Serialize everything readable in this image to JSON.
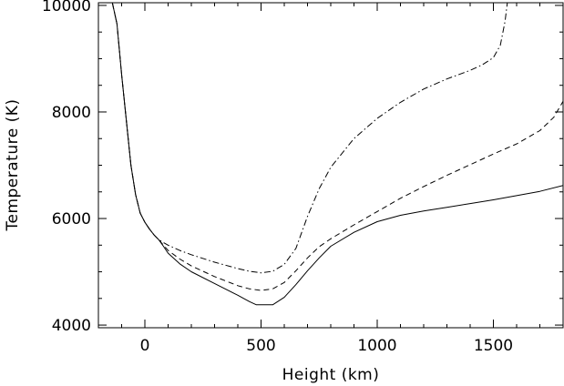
{
  "chart_data": {
    "type": "line",
    "title": "",
    "xlabel": "Height (km)",
    "ylabel": "Temperature (K)",
    "xlim": [
      -200,
      1800
    ],
    "ylim": [
      3950,
      10050
    ],
    "grid": false,
    "legend": "none",
    "x_ticks": [
      0,
      500,
      1000,
      1500
    ],
    "y_ticks": [
      4000,
      6000,
      8000,
      10000
    ],
    "x_tick_labels": [
      "0",
      "500",
      "1000",
      "1500"
    ],
    "y_tick_labels": [
      "4000",
      "6000",
      "8000",
      "10000"
    ],
    "series": [
      {
        "style": "solid",
        "points": [
          [
            -140,
            10050
          ],
          [
            -120,
            9650
          ],
          [
            -100,
            8700
          ],
          [
            -80,
            7850
          ],
          [
            -60,
            7000
          ],
          [
            -40,
            6450
          ],
          [
            -20,
            6100
          ],
          [
            0,
            5930
          ],
          [
            20,
            5800
          ],
          [
            40,
            5690
          ],
          [
            60,
            5600
          ],
          [
            80,
            5480
          ],
          [
            100,
            5350
          ],
          [
            150,
            5150
          ],
          [
            200,
            5000
          ],
          [
            300,
            4780
          ],
          [
            400,
            4560
          ],
          [
            450,
            4440
          ],
          [
            480,
            4380
          ],
          [
            550,
            4380
          ],
          [
            600,
            4520
          ],
          [
            650,
            4760
          ],
          [
            700,
            5020
          ],
          [
            750,
            5260
          ],
          [
            800,
            5480
          ],
          [
            900,
            5740
          ],
          [
            1000,
            5940
          ],
          [
            1100,
            6060
          ],
          [
            1200,
            6140
          ],
          [
            1300,
            6210
          ],
          [
            1400,
            6280
          ],
          [
            1500,
            6350
          ],
          [
            1600,
            6430
          ],
          [
            1700,
            6510
          ],
          [
            1800,
            6620
          ]
        ]
      },
      {
        "style": "dashed",
        "points": [
          [
            -140,
            10050
          ],
          [
            -120,
            9650
          ],
          [
            -100,
            8700
          ],
          [
            -80,
            7850
          ],
          [
            -60,
            7000
          ],
          [
            -40,
            6450
          ],
          [
            -20,
            6100
          ],
          [
            0,
            5930
          ],
          [
            20,
            5800
          ],
          [
            40,
            5690
          ],
          [
            60,
            5600
          ],
          [
            80,
            5500
          ],
          [
            100,
            5400
          ],
          [
            150,
            5240
          ],
          [
            200,
            5110
          ],
          [
            300,
            4910
          ],
          [
            400,
            4740
          ],
          [
            450,
            4680
          ],
          [
            500,
            4650
          ],
          [
            550,
            4680
          ],
          [
            600,
            4800
          ],
          [
            650,
            5020
          ],
          [
            700,
            5260
          ],
          [
            750,
            5470
          ],
          [
            800,
            5620
          ],
          [
            900,
            5880
          ],
          [
            1000,
            6130
          ],
          [
            1100,
            6380
          ],
          [
            1200,
            6600
          ],
          [
            1300,
            6810
          ],
          [
            1400,
            7010
          ],
          [
            1500,
            7210
          ],
          [
            1600,
            7400
          ],
          [
            1700,
            7650
          ],
          [
            1760,
            7900
          ],
          [
            1800,
            8200
          ]
        ]
      },
      {
        "style": "dashdot",
        "points": [
          [
            -140,
            10050
          ],
          [
            -120,
            9650
          ],
          [
            -100,
            8700
          ],
          [
            -80,
            7850
          ],
          [
            -60,
            7000
          ],
          [
            -40,
            6450
          ],
          [
            -20,
            6100
          ],
          [
            0,
            5930
          ],
          [
            20,
            5800
          ],
          [
            40,
            5690
          ],
          [
            60,
            5600
          ],
          [
            80,
            5550
          ],
          [
            100,
            5500
          ],
          [
            150,
            5400
          ],
          [
            200,
            5320
          ],
          [
            300,
            5180
          ],
          [
            400,
            5060
          ],
          [
            450,
            5010
          ],
          [
            500,
            4980
          ],
          [
            550,
            5010
          ],
          [
            600,
            5140
          ],
          [
            650,
            5440
          ],
          [
            700,
            6040
          ],
          [
            750,
            6560
          ],
          [
            800,
            6960
          ],
          [
            900,
            7500
          ],
          [
            1000,
            7880
          ],
          [
            1100,
            8180
          ],
          [
            1200,
            8430
          ],
          [
            1300,
            8620
          ],
          [
            1400,
            8780
          ],
          [
            1450,
            8880
          ],
          [
            1500,
            9020
          ],
          [
            1530,
            9250
          ],
          [
            1550,
            9700
          ],
          [
            1560,
            10050
          ]
        ]
      }
    ]
  }
}
